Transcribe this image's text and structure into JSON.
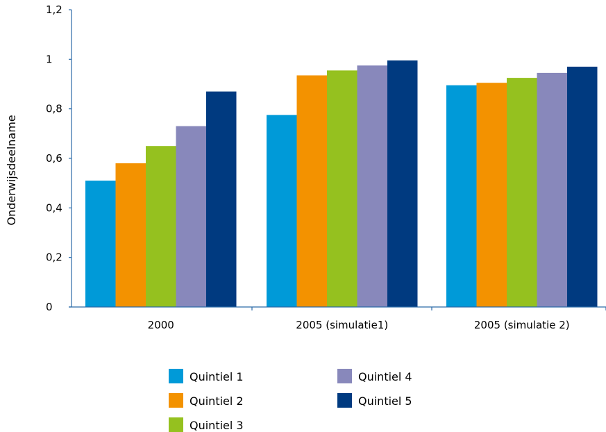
{
  "chart_data": {
    "type": "bar",
    "ylabel": "Onderwijsdeelname",
    "ylim": [
      0,
      1.2
    ],
    "yticks": [
      0,
      0.2,
      0.4,
      0.6,
      0.8,
      1,
      1.2
    ],
    "ytick_labels": [
      "0",
      "0,2",
      "0,4",
      "0,6",
      "0,8",
      "1",
      "1,2"
    ],
    "categories": [
      "2000",
      "2005 (simulatie1)",
      "2005 (simulatie 2)"
    ],
    "series": [
      {
        "name": "Quintiel 1",
        "color": "#009ad8",
        "values": [
          0.51,
          0.775,
          0.895
        ]
      },
      {
        "name": "Quintiel 2",
        "color": "#f39200",
        "values": [
          0.58,
          0.935,
          0.905
        ]
      },
      {
        "name": "Quintiel 3",
        "color": "#95c11f",
        "values": [
          0.65,
          0.955,
          0.925
        ]
      },
      {
        "name": "Quintiel 4",
        "color": "#8888bb",
        "values": [
          0.73,
          0.975,
          0.945
        ]
      },
      {
        "name": "Quintiel 5",
        "color": "#003a80",
        "values": [
          0.87,
          0.995,
          0.97
        ]
      }
    ],
    "grid": false,
    "legend": "bottom"
  }
}
